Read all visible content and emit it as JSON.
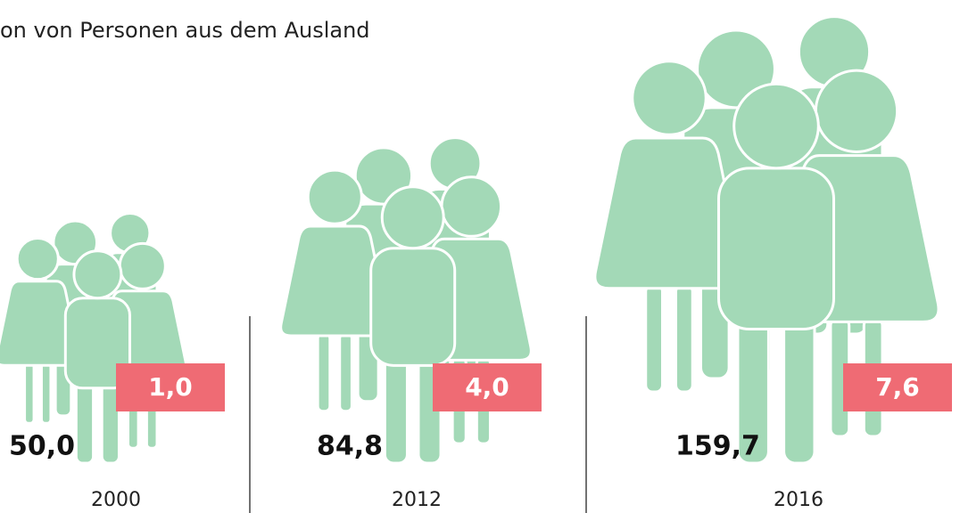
{
  "chart_data": {
    "type": "pictogram",
    "title": "on von Personen aus dem Ausland",
    "categories": [
      "2000",
      "2012",
      "2016"
    ],
    "series": [
      {
        "color": "#a3d9b7",
        "values": [
          50.0,
          84.8,
          159.7
        ],
        "value_labels": [
          "50,0",
          "84,8",
          "159,7"
        ]
      },
      {
        "color": "#ef6b74",
        "values": [
          1.0,
          4.0,
          7.6
        ],
        "value_labels": [
          "1,0",
          "4,0",
          "7,6"
        ]
      }
    ]
  }
}
